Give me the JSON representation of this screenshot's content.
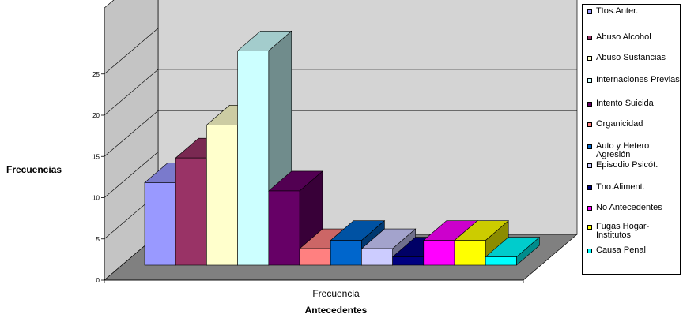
{
  "chart_data": {
    "type": "bar",
    "title": "",
    "xlabel": "Antecedentes",
    "ylabel": "Frecuencias",
    "categories": [
      "Frecuencia"
    ],
    "ylim": [
      0,
      25
    ],
    "yticks": [
      "0",
      "5",
      "10",
      "15",
      "20",
      "25"
    ],
    "grid": true,
    "legend_position": "right",
    "series": [
      {
        "name": "Ttos.Anter.",
        "values": [
          10
        ],
        "color": "#9999ff"
      },
      {
        "name": "Abuso Alcohol",
        "values": [
          13
        ],
        "color": "#993366"
      },
      {
        "name": "Abuso Sustancias",
        "values": [
          17
        ],
        "color": "#ffffcc"
      },
      {
        "name": "Internaciones Previas",
        "values": [
          26
        ],
        "color": "#ccffff"
      },
      {
        "name": "Intento Suicida",
        "values": [
          9
        ],
        "color": "#660066"
      },
      {
        "name": "Organicidad",
        "values": [
          2
        ],
        "color": "#ff8080"
      },
      {
        "name": "Auto y Hetero Agresión",
        "values": [
          3
        ],
        "color": "#0066cc"
      },
      {
        "name": "Episodio Psicót.",
        "values": [
          2
        ],
        "color": "#ccccff"
      },
      {
        "name": "Tno.Aliment.",
        "values": [
          1
        ],
        "color": "#000080"
      },
      {
        "name": "No Antecedentes",
        "values": [
          3
        ],
        "color": "#ff00ff"
      },
      {
        "name": "Fugas Hogar-Institutos",
        "values": [
          3
        ],
        "color": "#ffff00"
      },
      {
        "name": "Causa Penal",
        "values": [
          1
        ],
        "color": "#00ffff"
      }
    ]
  }
}
